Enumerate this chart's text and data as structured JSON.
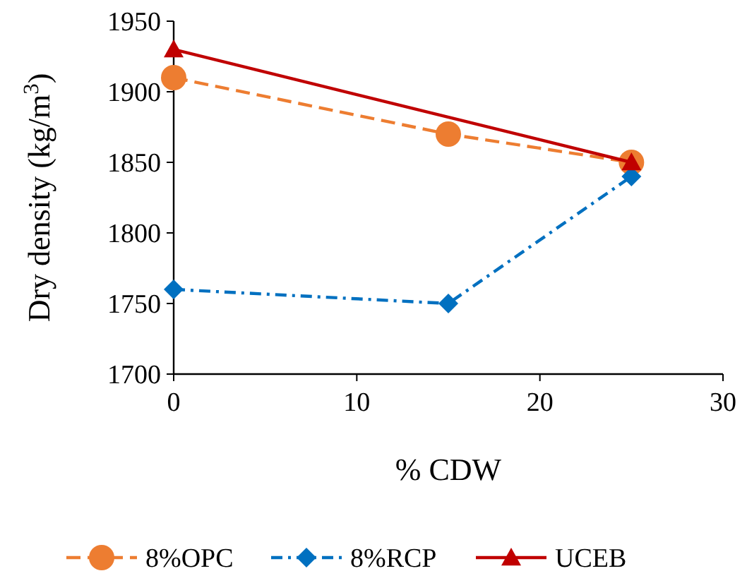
{
  "chart_data": {
    "type": "line",
    "xlabel": "% CDW",
    "ylabel": "Dry density (kg/m$^{3}$)",
    "x": [
      0,
      15,
      25
    ],
    "xlim": [
      0,
      30
    ],
    "xticks": [
      0,
      10,
      20,
      30
    ],
    "ylim": [
      1700,
      1950
    ],
    "yticks": [
      1700,
      1750,
      1800,
      1850,
      1900,
      1950
    ],
    "grid": false,
    "legend": "bottom",
    "series": [
      {
        "name": "8%OPC",
        "color": "#ed7d31",
        "values": [
          1910,
          1870,
          1850
        ],
        "marker": "circle",
        "line_style": "dashed"
      },
      {
        "name": "8%RCP",
        "color": "#0070c0",
        "values": [
          1760,
          1750,
          1840
        ],
        "marker": "diamond",
        "line_style": "dashdot"
      },
      {
        "name": "UCEB",
        "color": "#c00000",
        "x": [
          0,
          25
        ],
        "values": [
          1930,
          1850
        ],
        "marker": "triangle",
        "line_style": "solid"
      }
    ]
  }
}
